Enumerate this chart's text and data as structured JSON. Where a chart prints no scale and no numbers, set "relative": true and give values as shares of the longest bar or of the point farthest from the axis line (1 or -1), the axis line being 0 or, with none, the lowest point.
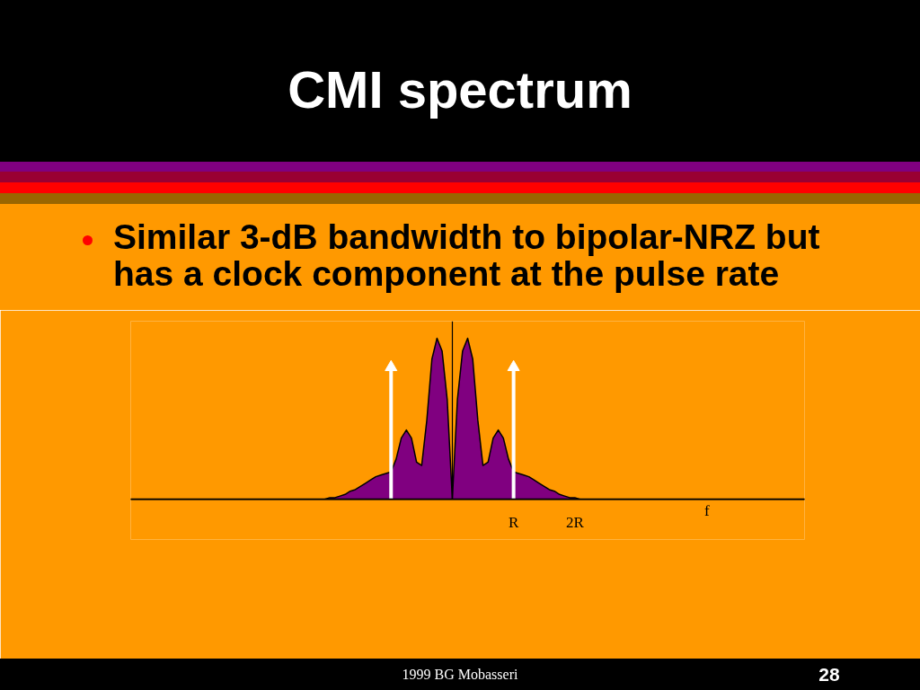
{
  "chart_data": {
    "type": "area",
    "title": "CMI spectrum",
    "xlabel": "f",
    "relative": true,
    "categories": [
      null,
      null,
      null,
      null,
      null,
      null,
      null,
      null,
      null,
      null,
      null,
      null,
      null,
      null,
      null,
      null,
      null,
      null,
      null,
      null,
      null,
      null,
      null,
      null,
      null,
      null,
      null,
      null,
      null,
      null,
      null,
      null,
      null,
      null,
      null,
      null,
      null,
      null,
      null,
      null,
      null,
      null,
      null,
      null,
      null,
      null,
      null,
      null,
      null,
      null,
      null,
      null,
      null,
      null,
      null,
      null,
      null,
      null,
      null,
      null,
      null,
      null,
      null,
      null,
      null,
      null,
      null,
      null,
      null,
      null,
      null,
      null,
      null,
      null,
      null,
      "R",
      null,
      null,
      null,
      null,
      null,
      null,
      null,
      null,
      null,
      null,
      null,
      "2R",
      null,
      null,
      null,
      null,
      null,
      null,
      null,
      null,
      null,
      null,
      null,
      null,
      null,
      null,
      null,
      null,
      null,
      null,
      null,
      null,
      null,
      null,
      null,
      null,
      null,
      null,
      null,
      null,
      null,
      null,
      null,
      null,
      null,
      null,
      null,
      null,
      null,
      null,
      null,
      null,
      null,
      null,
      null,
      null,
      null
    ],
    "series": [
      {
        "color": "#800080",
        "values": [
          0,
          0,
          0,
          0,
          0,
          0,
          0,
          0,
          0,
          0,
          0,
          0,
          0,
          0,
          0,
          0,
          0,
          0,
          0,
          0,
          0,
          0,
          0,
          0,
          0,
          0,
          0,
          0,
          0,
          0,
          0,
          0,
          0,
          0,
          0,
          0,
          0,
          0,
          0,
          0.01,
          0.01,
          0.02,
          0.03,
          0.05,
          0.06,
          0.08,
          0.1,
          0.12,
          0.14,
          0.15,
          0.16,
          0.17,
          0.25,
          0.38,
          0.43,
          0.38,
          0.23,
          0.21,
          0.49,
          0.87,
          1.0,
          0.92,
          0.62,
          0,
          0.62,
          0.92,
          1.0,
          0.87,
          0.49,
          0.21,
          0.23,
          0.38,
          0.43,
          0.38,
          0.25,
          0.17,
          0.16,
          0.15,
          0.14,
          0.12,
          0.1,
          0.08,
          0.06,
          0.05,
          0.03,
          0.02,
          0.01,
          0.01,
          0,
          0,
          0,
          0,
          0,
          0,
          0,
          0,
          0,
          0,
          0,
          0,
          0,
          0,
          0,
          0,
          0,
          0,
          0,
          0,
          0,
          0,
          0,
          0,
          0,
          0,
          0,
          0,
          0,
          0,
          0,
          0,
          0,
          0,
          0,
          0,
          0,
          0,
          0,
          0,
          0,
          0,
          0,
          0,
          0
        ]
      },
      {
        "type": "lollipop",
        "color": "#ffffff",
        "marker": "triangle",
        "values": [
          null,
          null,
          null,
          null,
          null,
          null,
          null,
          null,
          null,
          null,
          null,
          null,
          null,
          null,
          null,
          null,
          null,
          null,
          null,
          null,
          null,
          null,
          null,
          null,
          null,
          null,
          null,
          null,
          null,
          null,
          null,
          null,
          null,
          null,
          null,
          null,
          null,
          null,
          null,
          null,
          null,
          null,
          null,
          null,
          null,
          null,
          null,
          null,
          null,
          null,
          null,
          0.82,
          null,
          null,
          null,
          null,
          null,
          null,
          null,
          null,
          null,
          null,
          null,
          null,
          null,
          null,
          null,
          null,
          null,
          null,
          null,
          null,
          null,
          null,
          null,
          0.82,
          null,
          null,
          null,
          null,
          null,
          null,
          null,
          null,
          null,
          null,
          null,
          null,
          null,
          null,
          null,
          null,
          null,
          null,
          null,
          null,
          null,
          null,
          null,
          null,
          null,
          null,
          null,
          null,
          null,
          null,
          null,
          null,
          null,
          null,
          null,
          null,
          null,
          null,
          null,
          null,
          null,
          null,
          null,
          null,
          null,
          null,
          null,
          null,
          null,
          null,
          null,
          null,
          null,
          null,
          null,
          null,
          null
        ]
      }
    ],
    "annotations": [
      "Similar 3-dB bandwidth to bipolar-NRZ but has a clock component at the pulse rate",
      "1999 BG Mobasseri",
      "28"
    ]
  }
}
